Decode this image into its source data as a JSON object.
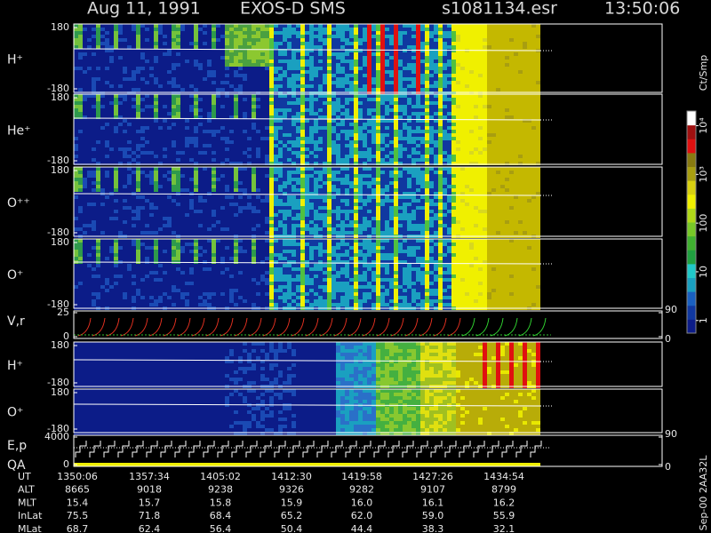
{
  "header": {
    "date": "Aug 11, 1991",
    "title": "EXOS-D SMS",
    "file": "s1081134.esr",
    "time": "13:50:06"
  },
  "chart_data": [
    {
      "type": "heatmap",
      "label": "H⁺",
      "ylim": [
        -180,
        180
      ],
      "yticks": [
        -180,
        180
      ]
    },
    {
      "type": "heatmap",
      "label": "He⁺",
      "ylim": [
        -180,
        180
      ],
      "yticks": [
        -180,
        180
      ]
    },
    {
      "type": "heatmap",
      "label": "O⁺⁺",
      "ylim": [
        -180,
        180
      ],
      "yticks": [
        -180,
        180
      ]
    },
    {
      "type": "heatmap",
      "label": "O⁺",
      "ylim": [
        -180,
        180
      ],
      "yticks": [
        -180,
        180
      ]
    },
    {
      "type": "line",
      "label": "V,r",
      "ylim": [
        0,
        25
      ],
      "yticks": [
        0,
        25
      ],
      "y2lim": [
        0,
        90
      ],
      "y2ticks": [
        0,
        90
      ]
    },
    {
      "type": "heatmap",
      "label": "H⁺",
      "ylim": [
        -180,
        180
      ],
      "yticks": [
        -180,
        180
      ]
    },
    {
      "type": "heatmap",
      "label": "O⁺",
      "ylim": [
        -180,
        180
      ],
      "yticks": [
        -180,
        180
      ]
    },
    {
      "type": "line",
      "label": "E,p",
      "sublabel": "QA",
      "ylim": [
        0,
        4000
      ],
      "yticks": [
        0,
        4000
      ],
      "y2lim": [
        0,
        90
      ],
      "y2ticks": [
        0,
        90
      ]
    }
  ],
  "colorbar": {
    "title": "Ct/Smp",
    "scale": "log",
    "lim": [
      0.55,
      20000
    ],
    "ticks": [
      1,
      10,
      100,
      {
        "value": 1000,
        "label": "10³"
      },
      {
        "value": 10000,
        "label": "10⁴"
      }
    ]
  },
  "footer": {
    "rows": [
      {
        "label": "UT",
        "values": [
          "1350:06",
          "1357:34",
          "1405:02",
          "1412:30",
          "1419:58",
          "1427:26",
          "1434:54"
        ]
      },
      {
        "label": "ALT",
        "values": [
          "8665",
          "9018",
          "9238",
          "9326",
          "9282",
          "9107",
          "8799"
        ]
      },
      {
        "label": "MLT",
        "values": [
          "15.4",
          "15.7",
          "15.8",
          "15.9",
          "16.0",
          "16.1",
          "16.2"
        ]
      },
      {
        "label": "InLat",
        "values": [
          "75.5",
          "71.8",
          "68.4",
          "65.2",
          "62.0",
          "59.0",
          "55.9"
        ]
      },
      {
        "label": "MLat",
        "values": [
          "68.7",
          "62.4",
          "56.4",
          "50.4",
          "44.4",
          "38.3",
          "32.1"
        ]
      }
    ],
    "note": "Sep-00 2AA32L"
  }
}
